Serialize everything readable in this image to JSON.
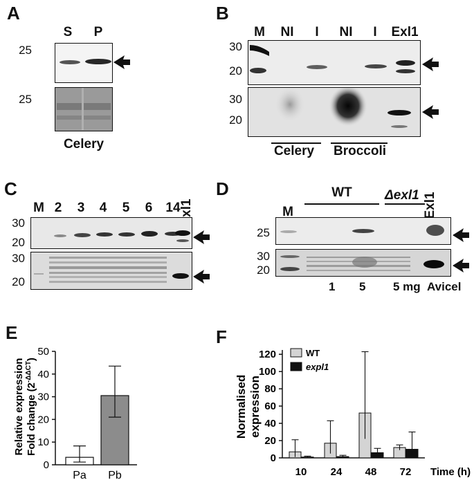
{
  "panels": {
    "A": {
      "label": "A",
      "lanes": [
        "S",
        "P"
      ],
      "mw_top": "25",
      "mw_bottom": "25",
      "caption": "Celery"
    },
    "B": {
      "label": "B",
      "lanes": [
        "M",
        "NI",
        "I",
        "NI",
        "I",
        "Exl1"
      ],
      "mw_top": [
        "30",
        "20"
      ],
      "mw_bottom": [
        "30",
        "20"
      ],
      "group_labels": [
        "Celery",
        "Broccoli"
      ]
    },
    "C": {
      "label": "C",
      "lanes": [
        "M",
        "2",
        "3",
        "4",
        "5",
        "6",
        "14",
        "Exl1"
      ],
      "mw_top": [
        "30",
        "20"
      ],
      "mw_bottom": [
        "30",
        "20"
      ]
    },
    "D": {
      "label": "D",
      "lanes": [
        "M",
        "WT",
        "Δexl1",
        "Exl1"
      ],
      "mw_top": [
        "25"
      ],
      "mw_bottom": [
        "30",
        "20"
      ],
      "bottom_labels": [
        "1",
        "5",
        "5 mg",
        "Avicel"
      ]
    }
  },
  "chart_data": [
    {
      "panel": "E",
      "type": "bar",
      "categories": [
        "Pa",
        "Pb"
      ],
      "values": [
        3.3,
        30.5
      ],
      "error_low": [
        1.2,
        21.0
      ],
      "error_high": [
        8.3,
        43.5
      ],
      "ylabel_line1": "Relative expression",
      "ylabel_line2": "Fold change (2",
      "ylabel_sup": "-ΔΔCT",
      "ylabel_end": ")",
      "ylim": [
        0,
        50
      ],
      "yticks": [
        "0",
        "10",
        "20",
        "30",
        "40",
        "50"
      ],
      "colors": [
        "#ffffff",
        "#8c8c8c"
      ]
    },
    {
      "panel": "F",
      "type": "bar",
      "categories": [
        "10",
        "24",
        "48",
        "72"
      ],
      "series": [
        {
          "name": "WT",
          "values": [
            7,
            17,
            52,
            12
          ],
          "error_high": [
            21,
            43,
            123,
            15
          ],
          "error_low": [
            1,
            5,
            22,
            9
          ],
          "color": "#d4d4d4"
        },
        {
          "name": "expl1",
          "values": [
            1,
            1.5,
            6,
            10
          ],
          "error_high": [
            2,
            3,
            11,
            30
          ],
          "error_low": [
            0,
            0.5,
            3,
            2
          ],
          "color": "#111111"
        }
      ],
      "ylabel_line1": "Normalised",
      "ylabel_line2": "expression",
      "xlabel": "Time (h)",
      "ylim": [
        0,
        125
      ],
      "yticks": [
        "0",
        "20",
        "40",
        "60",
        "80",
        "100",
        "120"
      ],
      "legend_placement": "top-left"
    }
  ]
}
